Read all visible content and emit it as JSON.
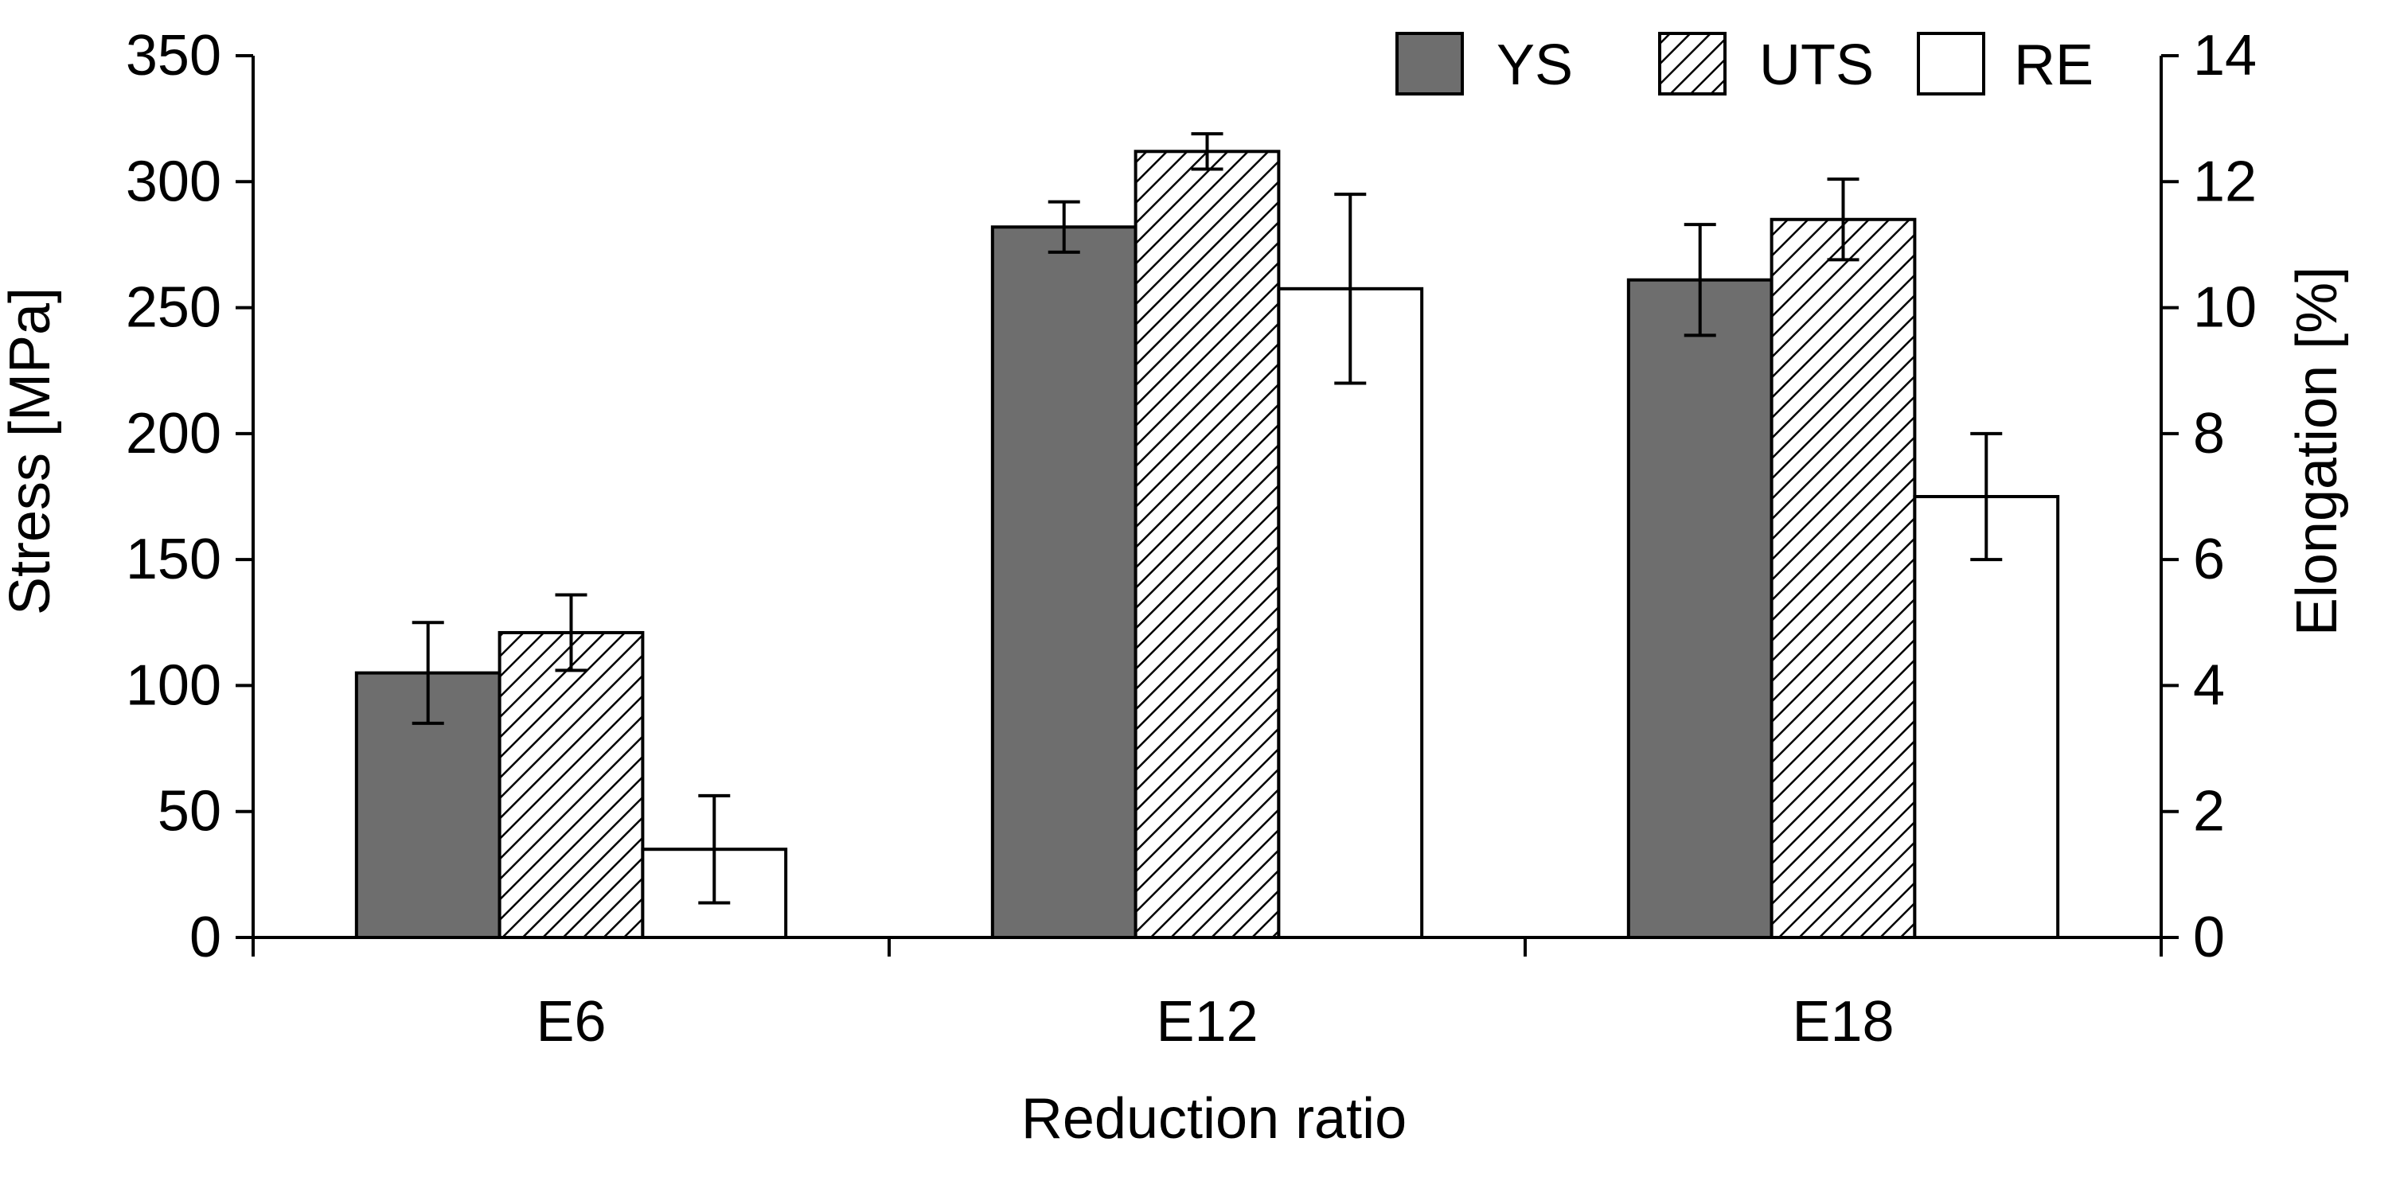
{
  "chart_data": {
    "type": "bar",
    "categories": [
      "E6",
      "E12",
      "E18"
    ],
    "series": [
      {
        "name": "YS",
        "axis": "left",
        "values": [
          105,
          282,
          261
        ],
        "errors": [
          20,
          10,
          22
        ],
        "fill": "#6e6e6e",
        "pattern": "solid"
      },
      {
        "name": "UTS",
        "axis": "left",
        "values": [
          121,
          312,
          285
        ],
        "errors": [
          15,
          7,
          16
        ],
        "fill": "#ffffff",
        "pattern": "hatch"
      },
      {
        "name": "RE",
        "axis": "right",
        "values": [
          1.4,
          10.3,
          7.0
        ],
        "errors": [
          0.85,
          1.5,
          1.0
        ],
        "fill": "#ffffff",
        "pattern": "solid"
      }
    ],
    "xlabel": "Reduction ratio",
    "ylabel": "Stress [MPa]",
    "y2label": "Elongation [%]",
    "ylim": [
      0,
      350
    ],
    "y2lim": [
      0,
      14
    ],
    "yticks": [
      "0",
      "50",
      "100",
      "150",
      "200",
      "250",
      "300",
      "350"
    ],
    "y2ticks": [
      "0",
      "2",
      "4",
      "6",
      "8",
      "10",
      "12",
      "14"
    ],
    "legend_position": "top-right",
    "grid": false
  }
}
